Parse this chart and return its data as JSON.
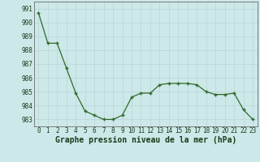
{
  "x": [
    0,
    1,
    2,
    3,
    4,
    5,
    6,
    7,
    8,
    9,
    10,
    11,
    12,
    13,
    14,
    15,
    16,
    17,
    18,
    19,
    20,
    21,
    22,
    23
  ],
  "y": [
    990.7,
    988.5,
    988.5,
    986.7,
    984.9,
    983.6,
    983.3,
    983.0,
    983.0,
    983.3,
    984.6,
    984.9,
    984.9,
    985.5,
    985.6,
    985.6,
    985.6,
    985.5,
    985.0,
    984.8,
    984.8,
    984.9,
    983.7,
    983.0
  ],
  "line_color": "#2d6a2d",
  "marker_color": "#2d6a2d",
  "bg_color": "#cde8e8",
  "grid_color": "#b8d4d4",
  "ylabel_values": [
    983,
    984,
    985,
    986,
    987,
    988,
    989,
    990,
    991
  ],
  "xlabel_values": [
    0,
    1,
    2,
    3,
    4,
    5,
    6,
    7,
    8,
    9,
    10,
    11,
    12,
    13,
    14,
    15,
    16,
    17,
    18,
    19,
    20,
    21,
    22,
    23
  ],
  "xlabel": "Graphe pression niveau de la mer (hPa)",
  "ylim": [
    982.5,
    991.5
  ],
  "xlim": [
    -0.5,
    23.5
  ],
  "tick_fontsize": 5.5,
  "label_fontsize": 7.0
}
